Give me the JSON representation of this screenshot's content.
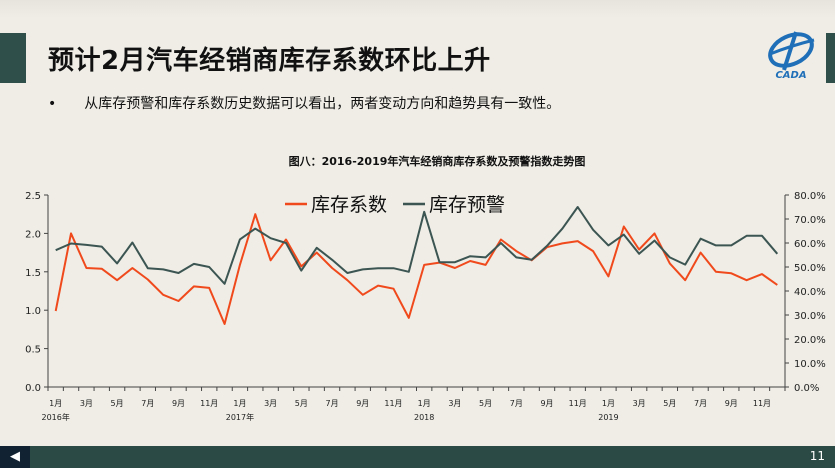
{
  "slide": {
    "title": "预计2月汽车经销商库存系数环比上升",
    "bullet_marker": "•",
    "bullet_text": "从库存预警和库存系数历史数据可以看出，两者变动方向和趋势具有一致性。",
    "page_number": "11",
    "prev_icon": "◀",
    "logo_text": "CADA"
  },
  "colors": {
    "band": "#2f4f4a",
    "red": "#f04a1c",
    "dark": "#3c5552"
  },
  "chart_data": {
    "type": "line",
    "title": "图八：2016-2019年汽车经销商库存系数及预警指数走势图",
    "y_left_ticks": [
      "0.0",
      "0.5",
      "1.0",
      "1.5",
      "2.0",
      "2.5"
    ],
    "y_right_ticks": [
      "0.0%",
      "10.0%",
      "20.0%",
      "30.0%",
      "40.0%",
      "50.0%",
      "60.0%",
      "70.0%",
      "80.0%"
    ],
    "ylim_left": [
      0,
      2.5
    ],
    "ylim_right": [
      0,
      80
    ],
    "x_tick_labels": [
      "1月",
      "3月",
      "5月",
      "7月",
      "9月",
      "11月",
      "1月",
      "3月",
      "5月",
      "7月",
      "9月",
      "11月",
      "1月",
      "3月",
      "5月",
      "7月",
      "9月",
      "11月",
      "1月",
      "3月",
      "5月",
      "7月",
      "9月",
      "11月"
    ],
    "year_labels": [
      "2016年",
      "2017年",
      "2018",
      "2019"
    ],
    "legend_position": "top-center",
    "series": [
      {
        "name": "库存系数",
        "axis": "left",
        "color": "#f04a1c",
        "values": [
          0.99,
          2.0,
          1.55,
          1.54,
          1.39,
          1.55,
          1.4,
          1.2,
          1.12,
          1.31,
          1.29,
          0.82,
          1.59,
          2.25,
          1.65,
          1.92,
          1.57,
          1.75,
          1.55,
          1.39,
          1.2,
          1.32,
          1.28,
          0.9,
          1.59,
          1.62,
          1.55,
          1.64,
          1.59,
          1.92,
          1.77,
          1.65,
          1.82,
          1.87,
          1.9,
          1.77,
          1.44,
          2.09,
          1.79,
          2.0,
          1.61,
          1.39,
          1.75,
          1.5,
          1.48,
          1.39,
          1.47,
          1.33
        ]
      },
      {
        "name": "库存预警",
        "axis": "right",
        "color": "#3c5552",
        "values": [
          57.0,
          59.8,
          59.2,
          58.5,
          51.5,
          60.2,
          49.5,
          49.0,
          47.5,
          51.3,
          50.0,
          43.0,
          61.5,
          66.0,
          62.0,
          60.0,
          48.5,
          58.0,
          53.0,
          47.5,
          49.0,
          49.5,
          49.5,
          48.0,
          73.0,
          52.0,
          52.0,
          54.5,
          54.0,
          60.0,
          54.0,
          53.0,
          58.8,
          66.0,
          75.0,
          65.5,
          59.0,
          63.5,
          55.5,
          61.0,
          54.0,
          51.0,
          61.8,
          59.0,
          59.0,
          63.0,
          63.0,
          55.5
        ]
      }
    ]
  }
}
